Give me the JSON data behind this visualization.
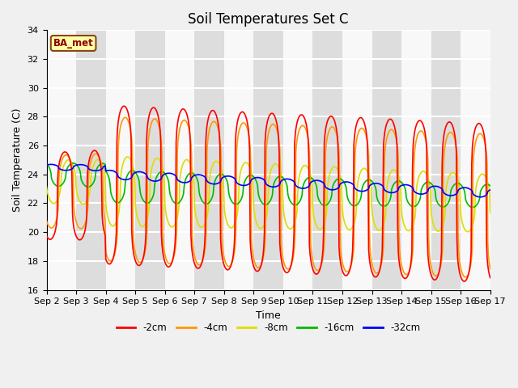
{
  "title": "Soil Temperatures Set C",
  "xlabel": "Time",
  "ylabel": "Soil Temperature (C)",
  "ylim": [
    16,
    34
  ],
  "xlim": [
    0,
    15
  ],
  "x_tick_labels": [
    "Sep 2",
    "Sep 3",
    "Sep 4",
    "Sep 5",
    "Sep 6",
    "Sep 7",
    "Sep 8",
    "Sep 9",
    "Sep 10",
    "Sep 11",
    "Sep 12",
    "Sep 13",
    "Sep 14",
    "Sep 15",
    "Sep 16",
    "Sep 17"
  ],
  "series_colors": [
    "#ff0000",
    "#ff9900",
    "#dddd00",
    "#00bb00",
    "#0000ff"
  ],
  "series_names": [
    "-2cm",
    "-4cm",
    "-8cm",
    "-16cm",
    "-32cm"
  ],
  "legend_label": "BA_met",
  "title_fontsize": 12,
  "axis_fontsize": 9,
  "tick_fontsize": 8
}
